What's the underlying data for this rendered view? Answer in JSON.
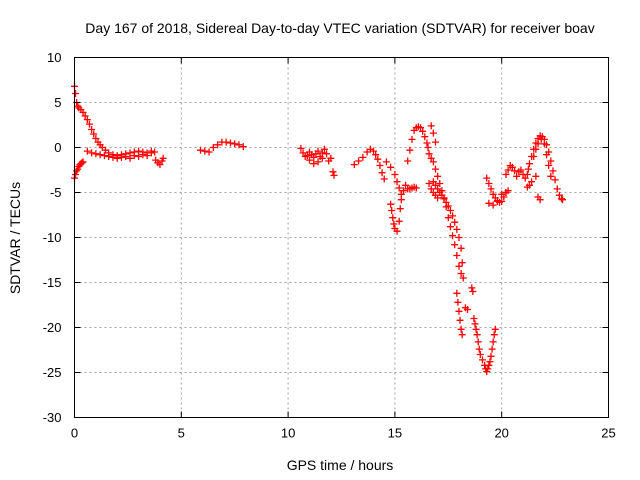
{
  "chart_data": {
    "type": "scatter",
    "title": "Day 167 of 2018, Sidereal Day-to-day VTEC variation (SDTVAR) for receiver boav",
    "xlabel": "GPS time / hours",
    "ylabel": "SDTVAR / TECUs",
    "xlim": [
      0,
      25
    ],
    "ylim": [
      -30,
      10
    ],
    "xticks": [
      0,
      5,
      10,
      15,
      20,
      25
    ],
    "yticks": [
      10,
      5,
      0,
      -5,
      -10,
      -15,
      -20,
      -25,
      -30
    ],
    "grid": true,
    "marker": "+",
    "marker_color": "#ff0000",
    "series": [
      {
        "name": "SDTVAR",
        "points": [
          [
            0.0,
            -3.4
          ],
          [
            0.05,
            -3.0
          ],
          [
            0.1,
            -2.6
          ],
          [
            0.15,
            -2.4
          ],
          [
            0.2,
            -2.1
          ],
          [
            0.25,
            -1.9
          ],
          [
            0.3,
            -1.8
          ],
          [
            0.35,
            -1.7
          ],
          [
            0.4,
            -1.6
          ],
          [
            0.0,
            6.8
          ],
          [
            0.05,
            6.0
          ],
          [
            0.1,
            5.0
          ],
          [
            0.15,
            4.6
          ],
          [
            0.2,
            4.4
          ],
          [
            0.3,
            4.2
          ],
          [
            0.4,
            3.9
          ],
          [
            0.5,
            3.5
          ],
          [
            0.6,
            3.1
          ],
          [
            0.7,
            2.6
          ],
          [
            0.8,
            2.0
          ],
          [
            0.9,
            1.5
          ],
          [
            1.0,
            1.0
          ],
          [
            1.1,
            0.6
          ],
          [
            1.2,
            0.3
          ],
          [
            1.3,
            0.0
          ],
          [
            1.45,
            -0.3
          ],
          [
            1.6,
            -0.6
          ],
          [
            1.8,
            -0.8
          ],
          [
            2.0,
            -0.9
          ],
          [
            2.2,
            -0.8
          ],
          [
            2.4,
            -0.7
          ],
          [
            2.6,
            -0.6
          ],
          [
            2.8,
            -0.5
          ],
          [
            3.0,
            -0.4
          ],
          [
            3.2,
            -0.5
          ],
          [
            3.4,
            -0.6
          ],
          [
            3.6,
            -0.4
          ],
          [
            3.75,
            -0.5
          ],
          [
            0.6,
            -0.4
          ],
          [
            0.8,
            -0.6
          ],
          [
            1.0,
            -0.7
          ],
          [
            1.2,
            -0.8
          ],
          [
            1.4,
            -0.9
          ],
          [
            1.6,
            -1.0
          ],
          [
            1.8,
            -1.1
          ],
          [
            2.0,
            -1.2
          ],
          [
            2.2,
            -1.1
          ],
          [
            2.4,
            -1.0
          ],
          [
            2.6,
            -1.2
          ],
          [
            2.8,
            -0.9
          ],
          [
            3.0,
            -1.0
          ],
          [
            3.2,
            -0.8
          ],
          [
            3.4,
            -0.9
          ],
          [
            3.6,
            -0.6
          ],
          [
            3.8,
            -1.4
          ],
          [
            3.9,
            -1.7
          ],
          [
            4.0,
            -1.9
          ],
          [
            4.1,
            -1.5
          ],
          [
            4.15,
            -1.2
          ],
          [
            5.9,
            -0.3
          ],
          [
            6.1,
            -0.4
          ],
          [
            6.3,
            -0.5
          ],
          [
            6.5,
            0.0
          ],
          [
            6.7,
            0.3
          ],
          [
            6.9,
            0.6
          ],
          [
            7.1,
            0.6
          ],
          [
            7.3,
            0.5
          ],
          [
            7.5,
            0.4
          ],
          [
            7.7,
            0.3
          ],
          [
            7.9,
            0.1
          ],
          [
            10.6,
            -0.1
          ],
          [
            10.7,
            -0.6
          ],
          [
            10.8,
            -1.0
          ],
          [
            10.9,
            -0.9
          ],
          [
            11.0,
            -0.5
          ],
          [
            11.1,
            -0.8
          ],
          [
            11.2,
            -1.1
          ],
          [
            11.3,
            -0.7
          ],
          [
            11.4,
            -0.4
          ],
          [
            11.5,
            -1.0
          ],
          [
            11.6,
            -0.6
          ],
          [
            11.7,
            -0.2
          ],
          [
            11.8,
            -0.7
          ],
          [
            11.9,
            -1.5
          ],
          [
            11.0,
            -1.4
          ],
          [
            11.2,
            -1.8
          ],
          [
            11.4,
            -1.6
          ],
          [
            11.6,
            -1.2
          ],
          [
            12.0,
            -1.2
          ],
          [
            12.1,
            -2.7
          ],
          [
            12.15,
            -3.1
          ],
          [
            13.1,
            -1.9
          ],
          [
            13.3,
            -1.5
          ],
          [
            13.5,
            -1.1
          ],
          [
            13.7,
            -0.5
          ],
          [
            13.85,
            -0.2
          ],
          [
            14.0,
            -0.4
          ],
          [
            14.1,
            -0.8
          ],
          [
            14.2,
            -1.3
          ],
          [
            14.3,
            -2.0
          ],
          [
            14.4,
            -2.8
          ],
          [
            14.5,
            -3.5
          ],
          [
            14.6,
            -1.6
          ],
          [
            14.8,
            -2.2
          ],
          [
            15.0,
            -3.0
          ],
          [
            15.1,
            -3.8
          ],
          [
            15.2,
            -4.5
          ],
          [
            15.3,
            -5.2
          ],
          [
            14.8,
            -6.3
          ],
          [
            14.85,
            -7.0
          ],
          [
            14.9,
            -7.8
          ],
          [
            14.95,
            -8.5
          ],
          [
            15.0,
            -9.0
          ],
          [
            15.1,
            -9.3
          ],
          [
            15.2,
            -8.2
          ],
          [
            15.25,
            -6.8
          ],
          [
            15.3,
            -5.8
          ],
          [
            15.4,
            -4.8
          ],
          [
            15.5,
            -4.2
          ],
          [
            15.6,
            -4.6
          ],
          [
            15.7,
            -4.6
          ],
          [
            15.8,
            -4.5
          ],
          [
            15.9,
            -4.4
          ],
          [
            16.0,
            -4.5
          ],
          [
            15.6,
            -1.5
          ],
          [
            15.7,
            -0.3
          ],
          [
            15.8,
            0.9
          ],
          [
            15.9,
            1.9
          ],
          [
            16.0,
            2.2
          ],
          [
            16.1,
            2.3
          ],
          [
            16.2,
            2.2
          ],
          [
            16.3,
            1.8
          ],
          [
            16.4,
            1.2
          ],
          [
            16.5,
            0.5
          ],
          [
            16.55,
            0.0
          ],
          [
            16.6,
            -0.7
          ],
          [
            16.7,
            -1.2
          ],
          [
            16.8,
            -1.6
          ],
          [
            16.9,
            -2.4
          ],
          [
            17.0,
            -3.2
          ],
          [
            17.1,
            -4.0
          ],
          [
            17.2,
            -4.8
          ],
          [
            17.3,
            -5.6
          ],
          [
            17.4,
            -6.6
          ],
          [
            17.5,
            -7.8
          ],
          [
            17.6,
            -8.8
          ],
          [
            17.7,
            -9.8
          ],
          [
            17.8,
            -10.8
          ],
          [
            17.9,
            -12.0
          ],
          [
            18.0,
            -13.2
          ],
          [
            18.1,
            -14.0
          ],
          [
            16.7,
            2.4
          ],
          [
            16.8,
            1.6
          ],
          [
            16.9,
            0.6
          ],
          [
            16.6,
            -4.0
          ],
          [
            16.7,
            -4.6
          ],
          [
            16.8,
            -5.0
          ],
          [
            16.9,
            -5.3
          ],
          [
            17.0,
            -5.6
          ],
          [
            16.8,
            -3.8
          ],
          [
            16.9,
            -4.2
          ],
          [
            17.0,
            -4.6
          ],
          [
            17.1,
            -5.0
          ],
          [
            17.2,
            -5.3
          ],
          [
            17.3,
            -5.7
          ],
          [
            17.4,
            -6.1
          ],
          [
            17.5,
            -6.5
          ],
          [
            17.6,
            -7.0
          ],
          [
            17.7,
            -7.6
          ],
          [
            17.8,
            -8.3
          ],
          [
            17.9,
            -9.1
          ],
          [
            18.0,
            -10.0
          ],
          [
            18.1,
            -11.2
          ],
          [
            18.15,
            -12.8
          ],
          [
            18.2,
            -14.5
          ],
          [
            17.9,
            -16.2
          ],
          [
            17.95,
            -17.2
          ],
          [
            18.0,
            -18.2
          ],
          [
            18.05,
            -19.2
          ],
          [
            18.1,
            -20.2
          ],
          [
            18.15,
            -20.8
          ],
          [
            18.3,
            -17.8
          ],
          [
            18.4,
            -18.0
          ],
          [
            18.6,
            -15.6
          ],
          [
            18.65,
            -16.0
          ],
          [
            18.7,
            -19.0
          ],
          [
            18.75,
            -19.6
          ],
          [
            18.8,
            -20.2
          ],
          [
            18.85,
            -20.8
          ],
          [
            18.9,
            -21.6
          ],
          [
            18.95,
            -22.4
          ],
          [
            19.0,
            -23.0
          ],
          [
            19.1,
            -23.6
          ],
          [
            19.2,
            -24.2
          ],
          [
            19.25,
            -24.6
          ],
          [
            19.3,
            -24.9
          ],
          [
            19.35,
            -24.6
          ],
          [
            19.4,
            -24.2
          ],
          [
            19.45,
            -23.8
          ],
          [
            19.5,
            -23.2
          ],
          [
            19.55,
            -22.4
          ],
          [
            19.6,
            -21.6
          ],
          [
            19.65,
            -20.8
          ],
          [
            19.7,
            -20.2
          ],
          [
            19.3,
            -3.4
          ],
          [
            19.4,
            -4.0
          ],
          [
            19.5,
            -4.6
          ],
          [
            19.6,
            -5.2
          ],
          [
            19.7,
            -5.6
          ],
          [
            19.8,
            -5.9
          ],
          [
            19.9,
            -6.1
          ],
          [
            20.0,
            -6.0
          ],
          [
            20.1,
            -5.5
          ],
          [
            20.2,
            -5.0
          ],
          [
            19.4,
            -6.2
          ],
          [
            19.6,
            -6.4
          ],
          [
            19.8,
            -6.0
          ],
          [
            20.0,
            -5.2
          ],
          [
            20.2,
            -5.0
          ],
          [
            20.3,
            -4.8
          ],
          [
            20.2,
            -3.0
          ],
          [
            20.3,
            -2.5
          ],
          [
            20.4,
            -2.0
          ],
          [
            20.5,
            -2.2
          ],
          [
            20.6,
            -2.6
          ],
          [
            20.7,
            -3.2
          ],
          [
            20.8,
            -2.7
          ],
          [
            20.9,
            -2.5
          ],
          [
            21.0,
            -3.0
          ],
          [
            21.1,
            -3.4
          ],
          [
            21.2,
            -3.0
          ],
          [
            21.25,
            -2.4
          ],
          [
            21.3,
            -1.8
          ],
          [
            21.4,
            -1.0
          ],
          [
            21.5,
            -0.2
          ],
          [
            21.6,
            0.5
          ],
          [
            21.7,
            1.0
          ],
          [
            21.8,
            1.3
          ],
          [
            21.9,
            1.2
          ],
          [
            22.0,
            0.9
          ],
          [
            22.1,
            0.3
          ],
          [
            22.2,
            -0.5
          ],
          [
            22.3,
            -1.5
          ],
          [
            22.4,
            -2.6
          ],
          [
            22.5,
            -3.6
          ],
          [
            22.6,
            -4.6
          ],
          [
            22.7,
            -5.3
          ],
          [
            22.8,
            -5.7
          ],
          [
            22.85,
            -5.8
          ],
          [
            21.2,
            -4.4
          ],
          [
            21.3,
            -4.2
          ],
          [
            21.4,
            -3.8
          ],
          [
            21.6,
            -3.2
          ],
          [
            21.7,
            -5.5
          ],
          [
            21.8,
            -5.8
          ],
          [
            21.5,
            -1.0
          ],
          [
            21.6,
            -0.2
          ],
          [
            21.7,
            0.4
          ],
          [
            21.85,
            0.9
          ],
          [
            22.0,
            0.4
          ],
          [
            22.1,
            -0.8
          ],
          [
            22.2,
            -2.0
          ],
          [
            22.3,
            -3.2
          ]
        ]
      }
    ]
  }
}
